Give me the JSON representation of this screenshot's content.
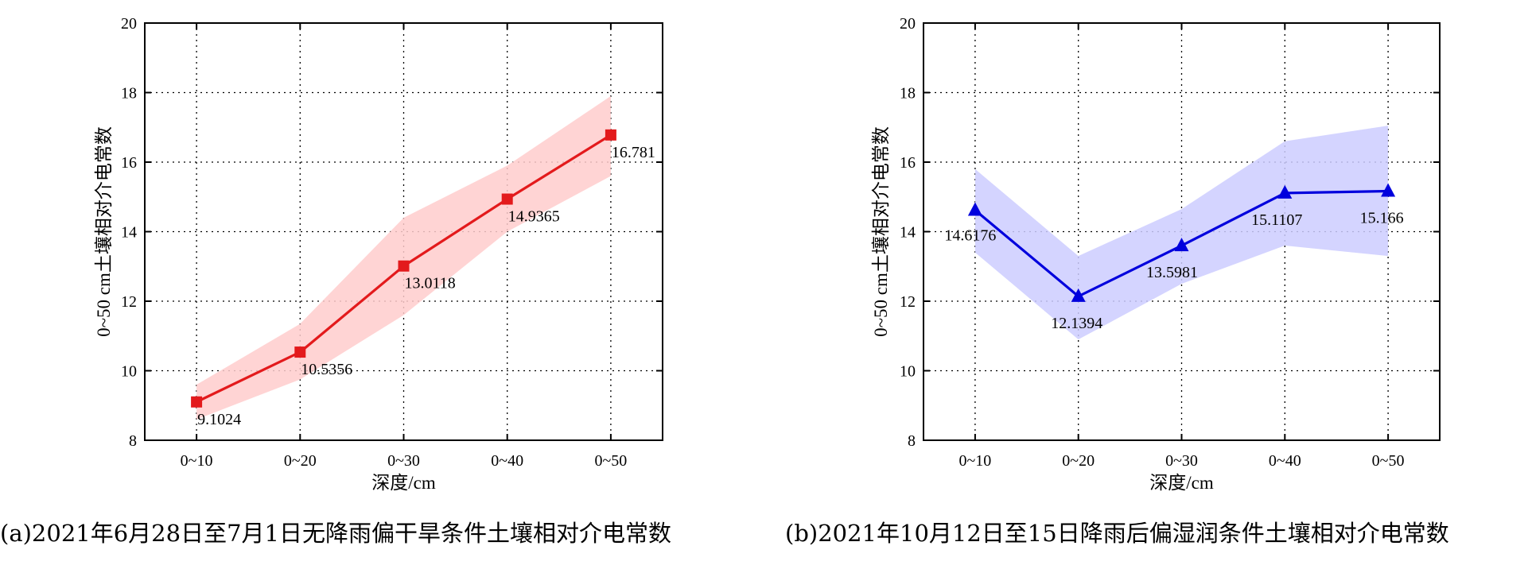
{
  "chart_data": [
    {
      "type": "line",
      "panel": "a",
      "categories": [
        "0~10",
        "0~20",
        "0~30",
        "0~40",
        "0~50"
      ],
      "series": [
        {
          "values": [
            9.1024,
            10.5356,
            13.0118,
            14.9365,
            16.781
          ],
          "value_labels": [
            "9.1024",
            "10.5356",
            "13.0118",
            "14.9365",
            "16.781"
          ],
          "lower": [
            8.6,
            9.75,
            11.6,
            14.0,
            15.6
          ],
          "upper": [
            9.6,
            11.35,
            14.4,
            15.9,
            17.9
          ],
          "marker": "square",
          "color": "#e31a1c",
          "band_color": "#ffcccc"
        }
      ],
      "xlabel": "深度/cm",
      "ylabel": "0~50 cm土壤相对介电常数",
      "ylim": [
        8,
        20
      ],
      "yticks": [
        8,
        10,
        12,
        14,
        16,
        18,
        20
      ],
      "grid": true,
      "caption": "(a)2021年6月28日至7月1日无降雨偏干旱条件土壤相对介电常数"
    },
    {
      "type": "line",
      "panel": "b",
      "categories": [
        "0~10",
        "0~20",
        "0~30",
        "0~40",
        "0~50"
      ],
      "series": [
        {
          "values": [
            14.6176,
            12.1394,
            13.5981,
            15.1107,
            15.166
          ],
          "value_labels": [
            "14.6176",
            "12.1394",
            "13.5981",
            "15.1107",
            "15.166"
          ],
          "lower": [
            13.4,
            10.9,
            12.5,
            13.6,
            13.3
          ],
          "upper": [
            15.8,
            13.3,
            14.65,
            16.6,
            17.05
          ],
          "marker": "triangle",
          "color": "#0000dd",
          "band_color": "#ccccff"
        }
      ],
      "xlabel": "深度/cm",
      "ylabel": "0~50 cm土壤相对介电常数",
      "ylim": [
        8,
        20
      ],
      "yticks": [
        8,
        10,
        12,
        14,
        16,
        18,
        20
      ],
      "grid": true,
      "caption": "(b)2021年10月12日至15日降雨后偏湿润条件土壤相对介电常数"
    }
  ]
}
